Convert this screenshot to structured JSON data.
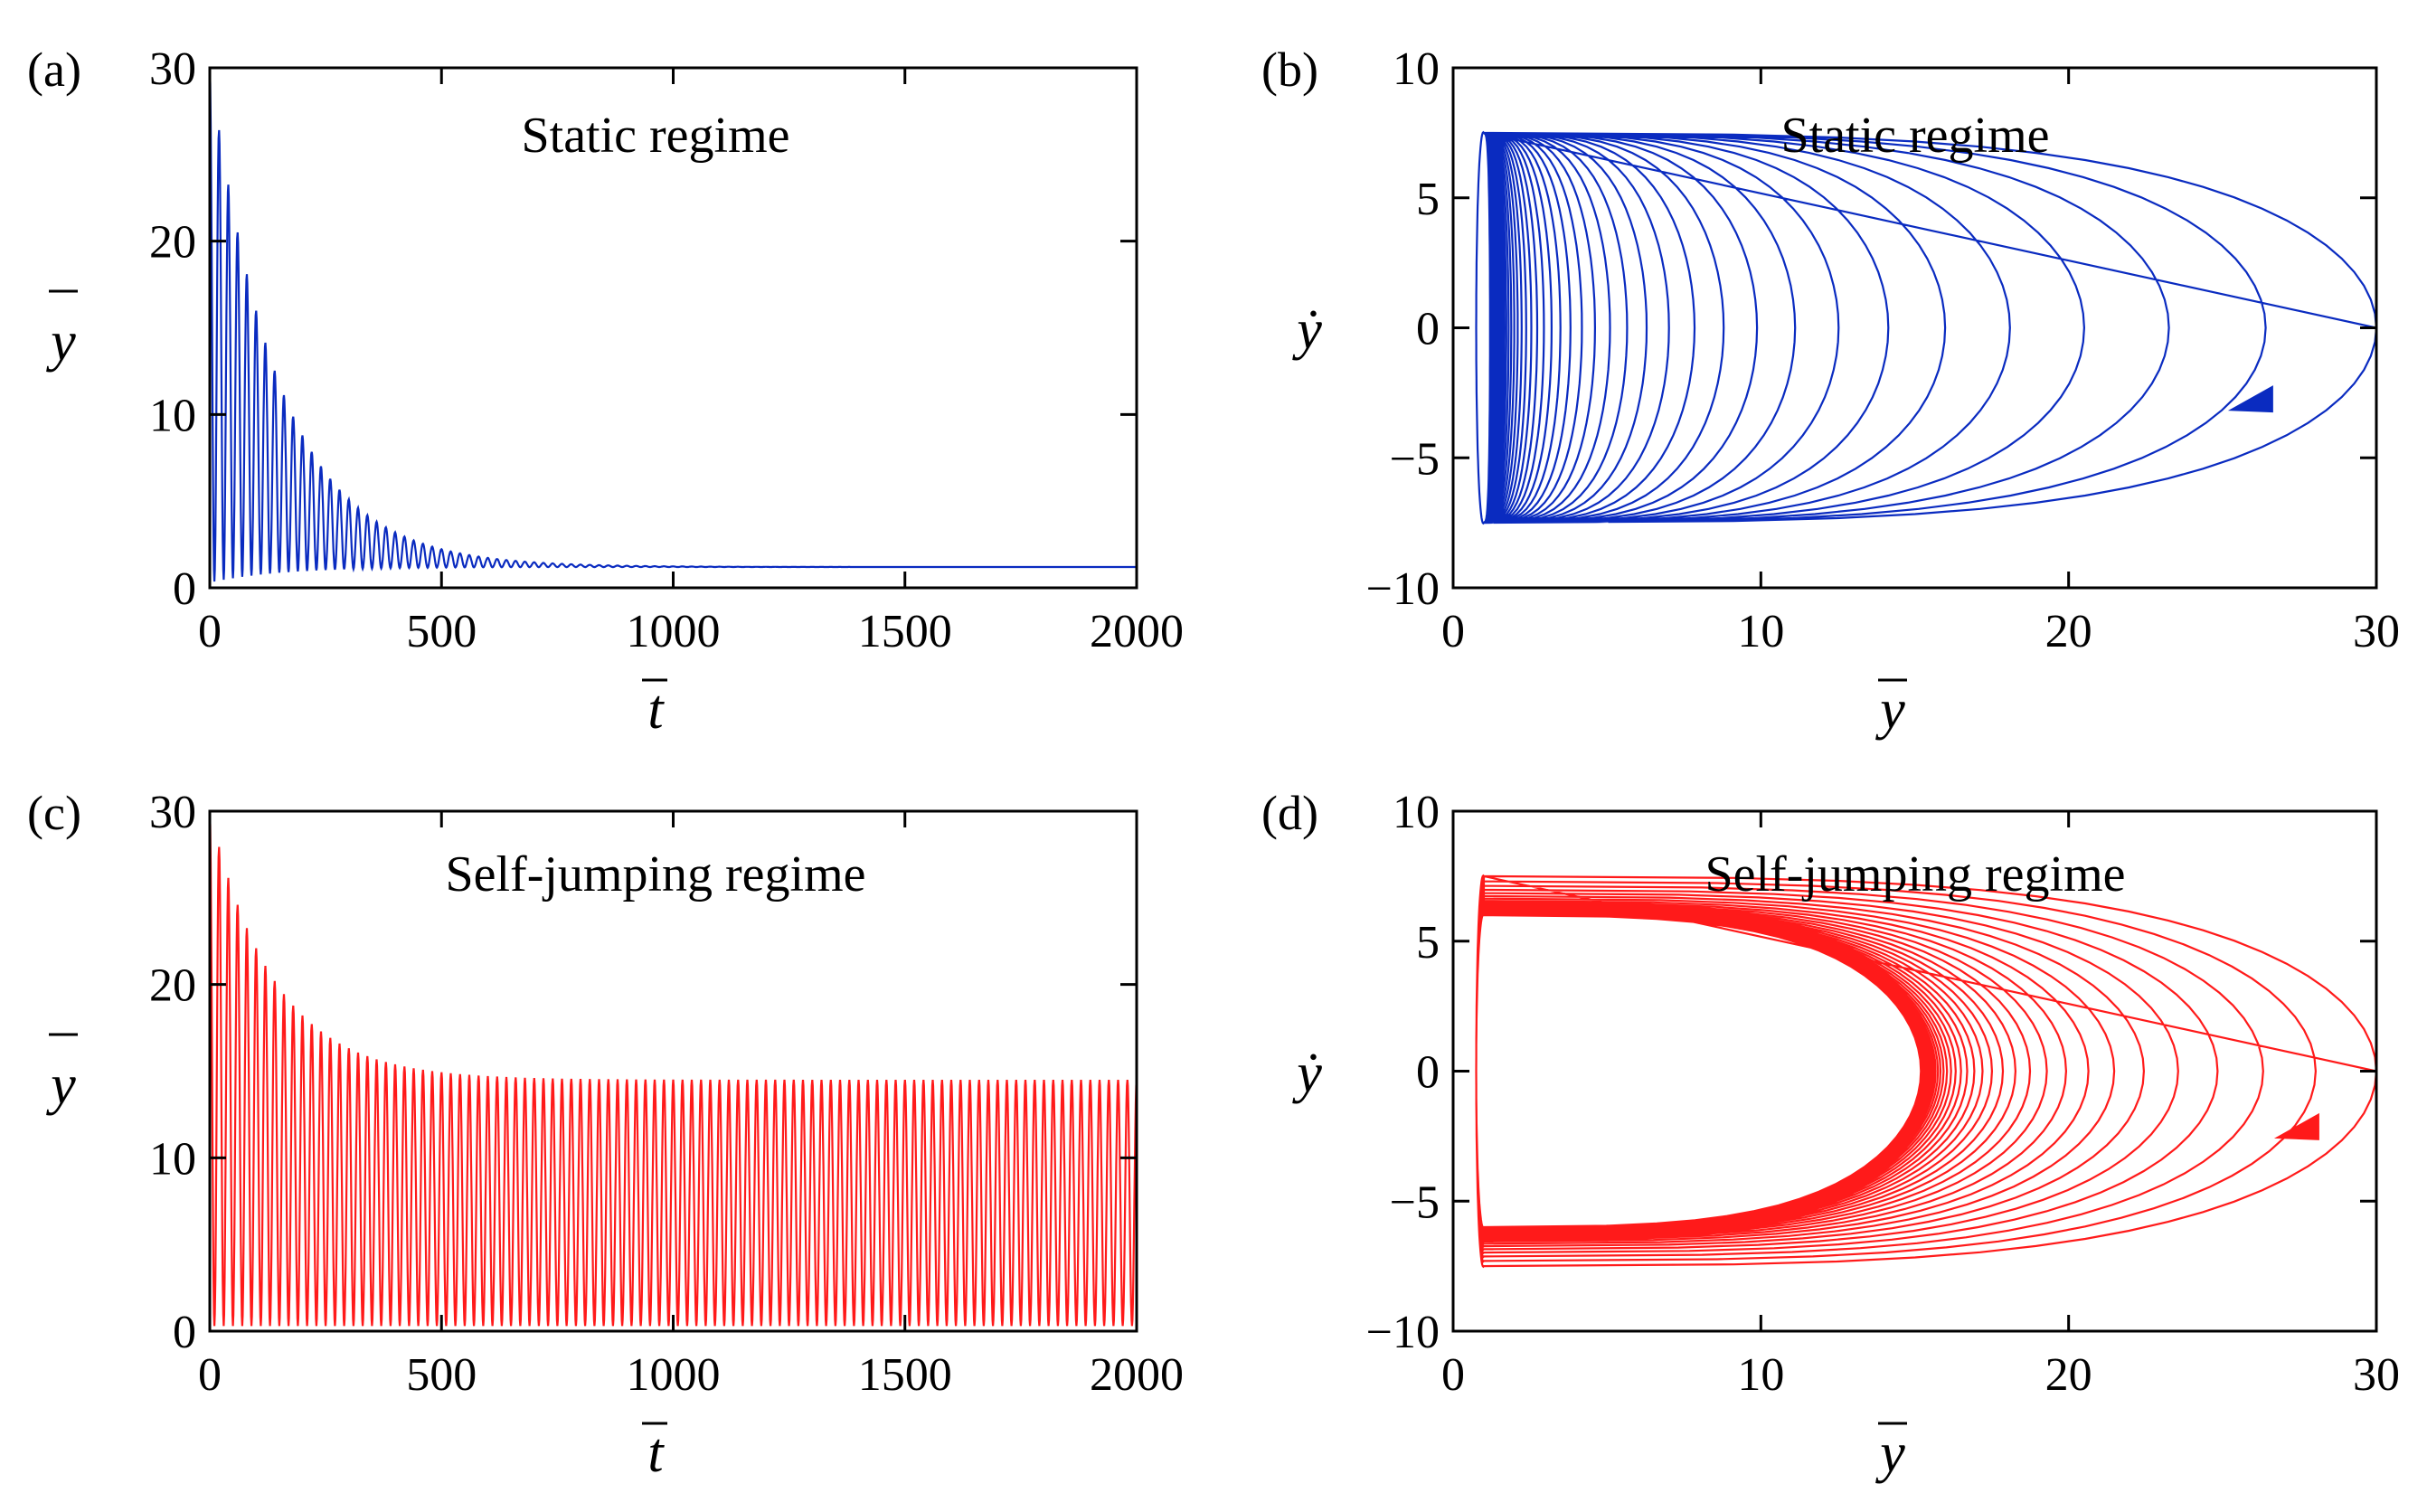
{
  "chart_data": [
    {
      "id": "a",
      "type": "line",
      "panel_label": "(a)",
      "annotation": "Static regime",
      "xlabel": "t",
      "ylabel": "y",
      "xlim": [
        0,
        2000
      ],
      "ylim": [
        0,
        30
      ],
      "xticks": [
        "0",
        "500",
        "1000",
        "1500",
        "2000"
      ],
      "yticks": [
        "0",
        "10",
        "20",
        "30"
      ],
      "color": "#0a2bc0",
      "series": [
        {
          "values": {
            "x_start": 0,
            "x_end": 2000,
            "initial_peak": 30,
            "initial_trough": 0.3,
            "equilibrium": 1.2,
            "decay_time": 150,
            "period": 20
          }
        }
      ]
    },
    {
      "id": "b",
      "type": "line",
      "panel_label": "(b)",
      "annotation": "Static regime",
      "xlabel": "y",
      "ylabel": "ẏ",
      "xlim": [
        0,
        30
      ],
      "ylim": [
        -10,
        10
      ],
      "xticks": [
        "0",
        "10",
        "20",
        "30"
      ],
      "yticks": [
        "−10",
        "−5",
        "0",
        "5",
        "10"
      ],
      "color": "#0a2bc0",
      "arrow": {
        "x": 26,
        "y": -2.7
      },
      "series": [
        {
          "values": {
            "start": [
              30,
              0
            ],
            "equilibrium_y": 1.2,
            "left_edge": 1.0,
            "max_velocity": 7.5,
            "decay_time": 150
          }
        }
      ]
    },
    {
      "id": "c",
      "type": "line",
      "panel_label": "(c)",
      "annotation": "Self-jumping regime",
      "xlabel": "t",
      "ylabel": "y",
      "xlim": [
        0,
        2000
      ],
      "ylim": [
        0,
        30
      ],
      "xticks": [
        "0",
        "500",
        "1000",
        "1500",
        "2000"
      ],
      "yticks": [
        "0",
        "10",
        "20",
        "30"
      ],
      "color": "#ff1a1a",
      "series": [
        {
          "values": {
            "x_start": 0,
            "x_end": 2000,
            "initial_peak": 30,
            "steady_peak": 14.5,
            "trough": 0.3,
            "decay_time": 140,
            "period": 20
          }
        }
      ]
    },
    {
      "id": "d",
      "type": "line",
      "panel_label": "(d)",
      "annotation": "Self-jumping regime",
      "xlabel": "y",
      "ylabel": "ẏ",
      "xlim": [
        0,
        30
      ],
      "ylim": [
        -10,
        10
      ],
      "xticks": [
        "0",
        "10",
        "20",
        "30"
      ],
      "yticks": [
        "−10",
        "−5",
        "0",
        "5",
        "10"
      ],
      "color": "#ff1a1a",
      "arrow": {
        "x": 27.5,
        "y": -2.1
      },
      "series": [
        {
          "values": {
            "start": [
              30,
              0
            ],
            "limit_cycle_right": 15.2,
            "left_edge": 1.0,
            "max_velocity": 7.5,
            "limit_velocity": 6.0,
            "decay_time": 140
          }
        }
      ]
    }
  ]
}
